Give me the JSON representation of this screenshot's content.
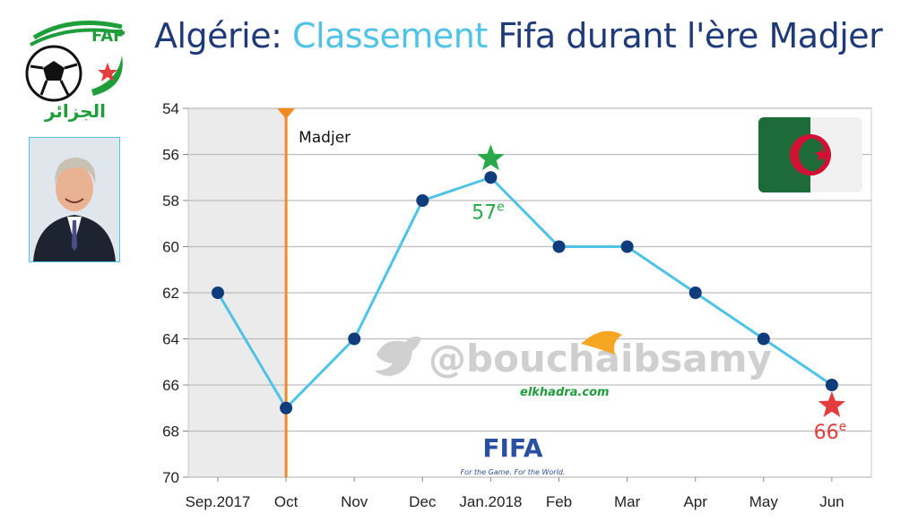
{
  "header": {
    "title_part1": "Algérie: ",
    "title_accent": "Classement",
    "title_part2": " Fifa durant l'ère Madjer"
  },
  "logo": {
    "text": "الجزائر",
    "letters": "FAF"
  },
  "watermarks": {
    "handle": "@bouchaibsamy",
    "site": "elkhadra.com",
    "fifa": "FIFA",
    "fifa_tagline": "For the Game. For the World."
  },
  "colors": {
    "title": "#1f3a78",
    "accent": "#4ec3e6",
    "line": "#4ec3e6",
    "marker": "#0f3c7a",
    "madjer_line": "#f08a24",
    "best_star": "#2aa84a",
    "worst_star": "#e43d3d"
  },
  "chart_data": {
    "type": "line",
    "title": "Algérie: Classement Fifa durant l'ère Madjer",
    "xlabel": "",
    "ylabel": "",
    "y_reversed": true,
    "ylim": [
      54,
      70
    ],
    "yticks": [
      54,
      56,
      58,
      60,
      62,
      64,
      66,
      68,
      70
    ],
    "categories": [
      "Sep.2017",
      "Oct",
      "Nov",
      "Dec",
      "Jan.2018",
      "Feb",
      "Mar",
      "Apr",
      "May",
      "Jun"
    ],
    "values": [
      62,
      67,
      64,
      58,
      57,
      60,
      60,
      62,
      64,
      66
    ],
    "grid": true,
    "shaded_period": [
      "Sep.2017",
      "Oct"
    ],
    "vertical_marker": {
      "at": "Oct",
      "label": "Madjer"
    },
    "annotations": [
      {
        "at": "Jan.2018",
        "text": "57",
        "sup": "e",
        "kind": "best"
      },
      {
        "at": "Jun",
        "text": "66",
        "sup": "e",
        "kind": "worst"
      }
    ]
  }
}
